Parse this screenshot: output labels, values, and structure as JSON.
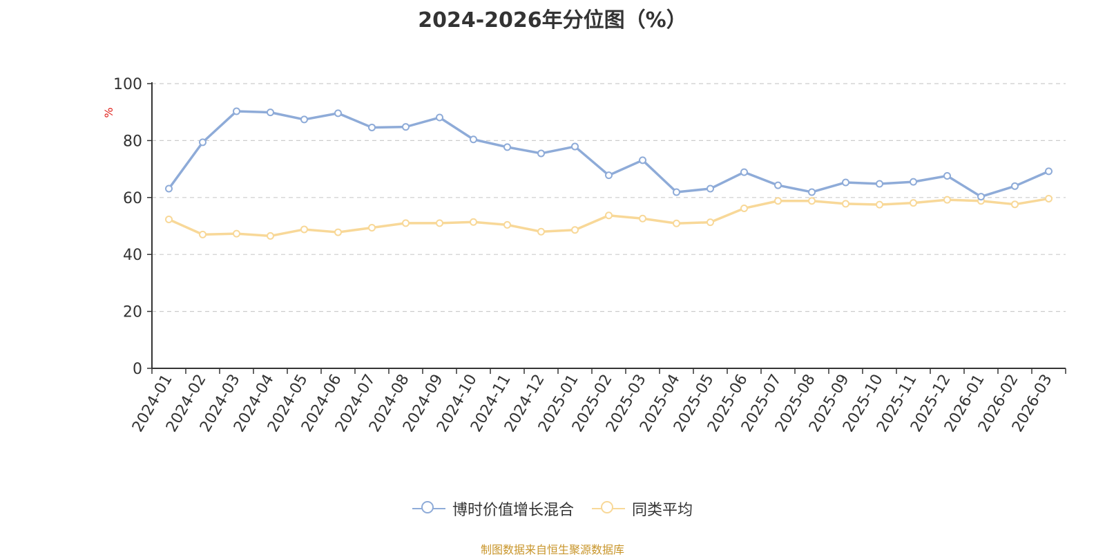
{
  "chart_data": {
    "type": "line",
    "title": "2024-2026年分位图（%）",
    "ylabel": "%",
    "ylim": [
      0,
      100
    ],
    "yticks": [
      0,
      20,
      40,
      60,
      80,
      100
    ],
    "grid": true,
    "legend_position": "bottom",
    "categories": [
      "2024-01",
      "2024-02",
      "2024-03",
      "2024-04",
      "2024-05",
      "2024-06",
      "2024-07",
      "2024-08",
      "2024-09",
      "2024-10",
      "2024-11",
      "2024-12",
      "2025-01",
      "2025-02",
      "2025-03",
      "2025-04",
      "2025-05",
      "2025-06",
      "2025-07",
      "2025-08",
      "2025-09",
      "2025-10",
      "2025-11",
      "2025-12",
      "2026-01",
      "2026-02",
      "2026-03"
    ],
    "series": [
      {
        "name": "博时价值增长混合",
        "color": "#8eabd8",
        "values": [
          63.1,
          79.4,
          90.3,
          89.9,
          87.4,
          89.6,
          84.6,
          84.8,
          88.1,
          80.4,
          77.7,
          75.5,
          77.9,
          67.8,
          73.1,
          61.9,
          63.1,
          68.9,
          64.3,
          61.9,
          65.3,
          64.8,
          65.5,
          67.6,
          60.3,
          64.0,
          69.2
        ]
      },
      {
        "name": "同类平均",
        "color": "#f8d898",
        "values": [
          52.3,
          47.0,
          47.3,
          46.5,
          48.8,
          47.8,
          49.4,
          51.0,
          51.0,
          51.4,
          50.4,
          48.0,
          48.6,
          53.7,
          52.6,
          50.9,
          51.3,
          56.2,
          58.8,
          58.8,
          57.8,
          57.5,
          58.1,
          59.2,
          58.8,
          57.6,
          59.6
        ]
      }
    ]
  },
  "source_text": "制图数据来自恒生聚源数据库"
}
